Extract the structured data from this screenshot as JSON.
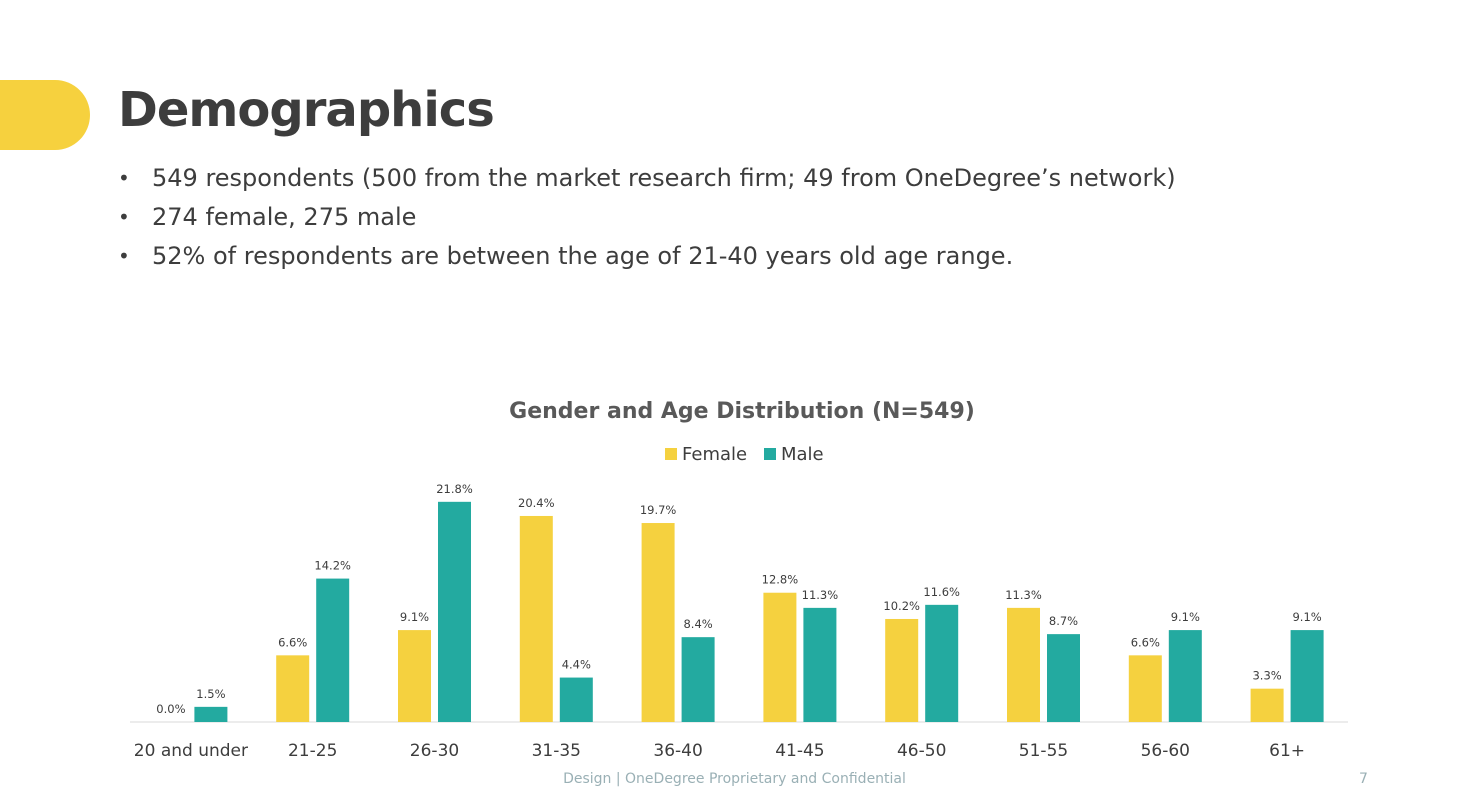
{
  "slide": {
    "title": "Demographics",
    "bullets": [
      "549 respondents (500 from the market research firm; 49 from OneDegree’s network)",
      "274 female, 275 male",
      "52% of respondents are between the age of  21-40 years old age range."
    ],
    "footer": "Design | OneDegree Proprietary and Confidential",
    "page_number": "7"
  },
  "colors": {
    "accent": "#f6d13e",
    "female": "#f5d13f",
    "male": "#23aaa0",
    "text": "#3d3d3d"
  },
  "chart_data": {
    "type": "bar",
    "title": "Gender and Age Distribution (N=549)",
    "legend_position": "top",
    "categories": [
      "20 and under",
      "21-25",
      "26-30",
      "31-35",
      "36-40",
      "41-45",
      "46-50",
      "51-55",
      "56-60",
      "61+"
    ],
    "series": [
      {
        "name": "Female",
        "values": [
          0.0,
          6.6,
          9.1,
          20.4,
          19.7,
          12.8,
          10.2,
          11.3,
          6.6,
          3.3
        ],
        "labels": [
          "0.0%",
          "6.6%",
          "9.1%",
          "20.4%",
          "19.7%",
          "12.8%",
          "10.2%",
          "11.3%",
          "6.6%",
          "3.3%"
        ]
      },
      {
        "name": "Male",
        "values": [
          1.5,
          14.2,
          21.8,
          4.4,
          8.4,
          11.3,
          11.6,
          8.7,
          9.1,
          9.1
        ],
        "labels": [
          "1.5%",
          "14.2%",
          "21.8%",
          "4.4%",
          "8.4%",
          "11.3%",
          "11.6%",
          "8.7%",
          "9.1%",
          "9.1%"
        ]
      }
    ],
    "ylim": [
      0,
      22
    ],
    "grid": false
  }
}
